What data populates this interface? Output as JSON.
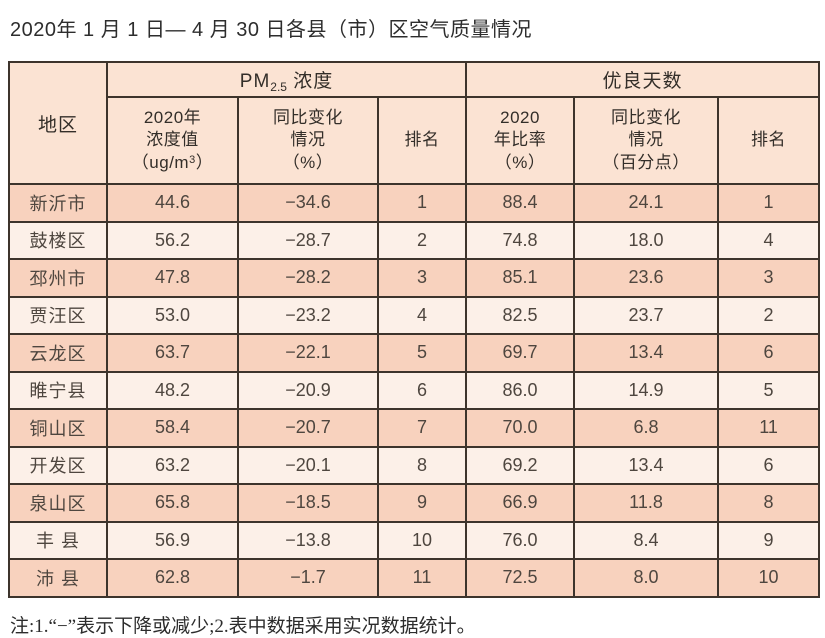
{
  "page": {
    "title": "2020年 1 月 1 日— 4 月 30 日各县（市）区空气质量情况",
    "note": "注:1.“−”表示下降或减少;2.表中数据采用实况数据统计。"
  },
  "table": {
    "region_header": "地区",
    "pm_group": {
      "prefix": "PM",
      "sub": "2.5",
      "suffix": " 浓度"
    },
    "good_days_group": "优良天数",
    "subheaders": {
      "concentration_line1": "2020年",
      "concentration_line2": "浓度值",
      "concentration_line3_open": "（ug/m",
      "concentration_line3_sup": "3",
      "concentration_line3_close": "）",
      "pm_change_line1": "同比变化",
      "pm_change_line2": "情况",
      "pm_change_line3": "（%）",
      "pm_rank": "排名",
      "ratio_line1": "2020",
      "ratio_line2": "年比率",
      "ratio_line3": "（%）",
      "days_change_line1": "同比变化",
      "days_change_line2": "情况",
      "days_change_line3": "（百分点）",
      "days_rank": "排名"
    },
    "rows": [
      [
        "新沂市",
        "44.6",
        "−34.6",
        "1",
        "88.4",
        "24.1",
        "1"
      ],
      [
        "鼓楼区",
        "56.2",
        "−28.7",
        "2",
        "74.8",
        "18.0",
        "4"
      ],
      [
        "邳州市",
        "47.8",
        "−28.2",
        "3",
        "85.1",
        "23.6",
        "3"
      ],
      [
        "贾汪区",
        "53.0",
        "−23.2",
        "4",
        "82.5",
        "23.7",
        "2"
      ],
      [
        "云龙区",
        "63.7",
        "−22.1",
        "5",
        "69.7",
        "13.4",
        "6"
      ],
      [
        "睢宁县",
        "48.2",
        "−20.9",
        "6",
        "86.0",
        "14.9",
        "5"
      ],
      [
        "铜山区",
        "58.4",
        "−20.7",
        "7",
        "70.0",
        "6.8",
        "11"
      ],
      [
        "开发区",
        "63.2",
        "−20.1",
        "8",
        "69.2",
        "13.4",
        "6"
      ],
      [
        "泉山区",
        "65.8",
        "−18.5",
        "9",
        "66.9",
        "11.8",
        "8"
      ],
      [
        "丰 县",
        "56.9",
        "−13.8",
        "10",
        "76.0",
        "8.4",
        "9"
      ],
      [
        "沛 县",
        "62.8",
        "−1.7",
        "11",
        "72.5",
        "8.0",
        "10"
      ]
    ]
  },
  "colors": {
    "header_bg": "#fbe3d3",
    "stripe_dark": "#f8d2be",
    "stripe_light": "#fcf0e8",
    "border": "#3d342c",
    "text": "#4e463f"
  }
}
